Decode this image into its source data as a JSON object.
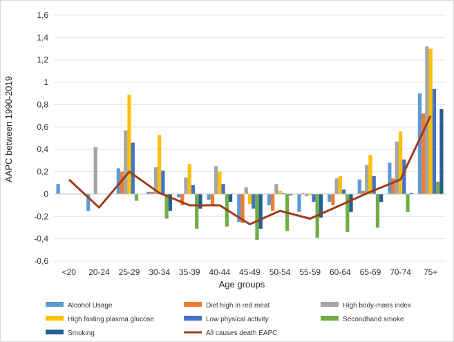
{
  "chart_data": {
    "type": "bar",
    "title": "",
    "xlabel": "Age groups",
    "ylabel": "AAPC between 1990-2019",
    "ylim": [
      -0.6,
      1.6
    ],
    "yticks": [
      "-0,6",
      "-0,4",
      "-0,2",
      "0",
      "0,2",
      "0,4",
      "0,6",
      "0,8",
      "1",
      "1,2",
      "1,4",
      "1,6"
    ],
    "grid": true,
    "legend_position": "bottom",
    "categories": [
      "<20",
      "20-24",
      "25-29",
      "30-34",
      "35-39",
      "40-44",
      "45-49",
      "50-54",
      "55-59",
      "60-64",
      "65-69",
      "70-74",
      "75+"
    ],
    "series": [
      {
        "name": "Alcohol Usage",
        "color": "#5b9bd5",
        "values": [
          0.09,
          -0.15,
          0.23,
          0.02,
          -0.03,
          -0.05,
          -0.25,
          -0.1,
          -0.16,
          -0.07,
          0.13,
          0.28,
          0.9
        ]
      },
      {
        "name": "Diet high in red meat",
        "color": "#ed7d31",
        "values": [
          null,
          null,
          0.2,
          0.02,
          -0.1,
          -0.1,
          -0.26,
          -0.15,
          0.01,
          -0.1,
          0.03,
          0.14,
          0.72
        ]
      },
      {
        "name": "High body-mass index",
        "color": "#a5a5a5",
        "values": [
          null,
          0.42,
          0.57,
          0.24,
          0.15,
          0.25,
          0.06,
          0.09,
          -0.02,
          0.14,
          0.26,
          0.47,
          1.32
        ]
      },
      {
        "name": "High fasting plasma glucose",
        "color": "#ffc000",
        "values": [
          null,
          null,
          0.89,
          0.53,
          0.27,
          0.2,
          -0.09,
          0.03,
          -0.01,
          0.16,
          0.35,
          0.56,
          1.3
        ]
      },
      {
        "name": "Low physical activity",
        "color": "#4472c4",
        "values": [
          null,
          null,
          0.46,
          0.21,
          0.08,
          0.09,
          -0.13,
          0.01,
          -0.07,
          0.04,
          0.16,
          0.31,
          0.94
        ]
      },
      {
        "name": "Secondhand smoke",
        "color": "#70ad47",
        "values": [
          null,
          null,
          -0.06,
          -0.22,
          -0.31,
          -0.29,
          -0.41,
          -0.33,
          -0.39,
          -0.34,
          -0.3,
          -0.16,
          0.11
        ]
      },
      {
        "name": "Smoking",
        "color": "#255e91",
        "values": [
          null,
          null,
          null,
          -0.15,
          -0.13,
          -0.07,
          -0.31,
          -0.01,
          -0.21,
          -0.16,
          -0.07,
          0.01,
          0.76
        ]
      }
    ],
    "line_series": {
      "name": "All causes death EAPC",
      "color": "#9e3a1c",
      "values": [
        0.13,
        -0.12,
        0.2,
        0.01,
        -0.1,
        -0.1,
        -0.27,
        -0.15,
        -0.22,
        -0.1,
        0.02,
        0.13,
        0.7
      ]
    }
  }
}
